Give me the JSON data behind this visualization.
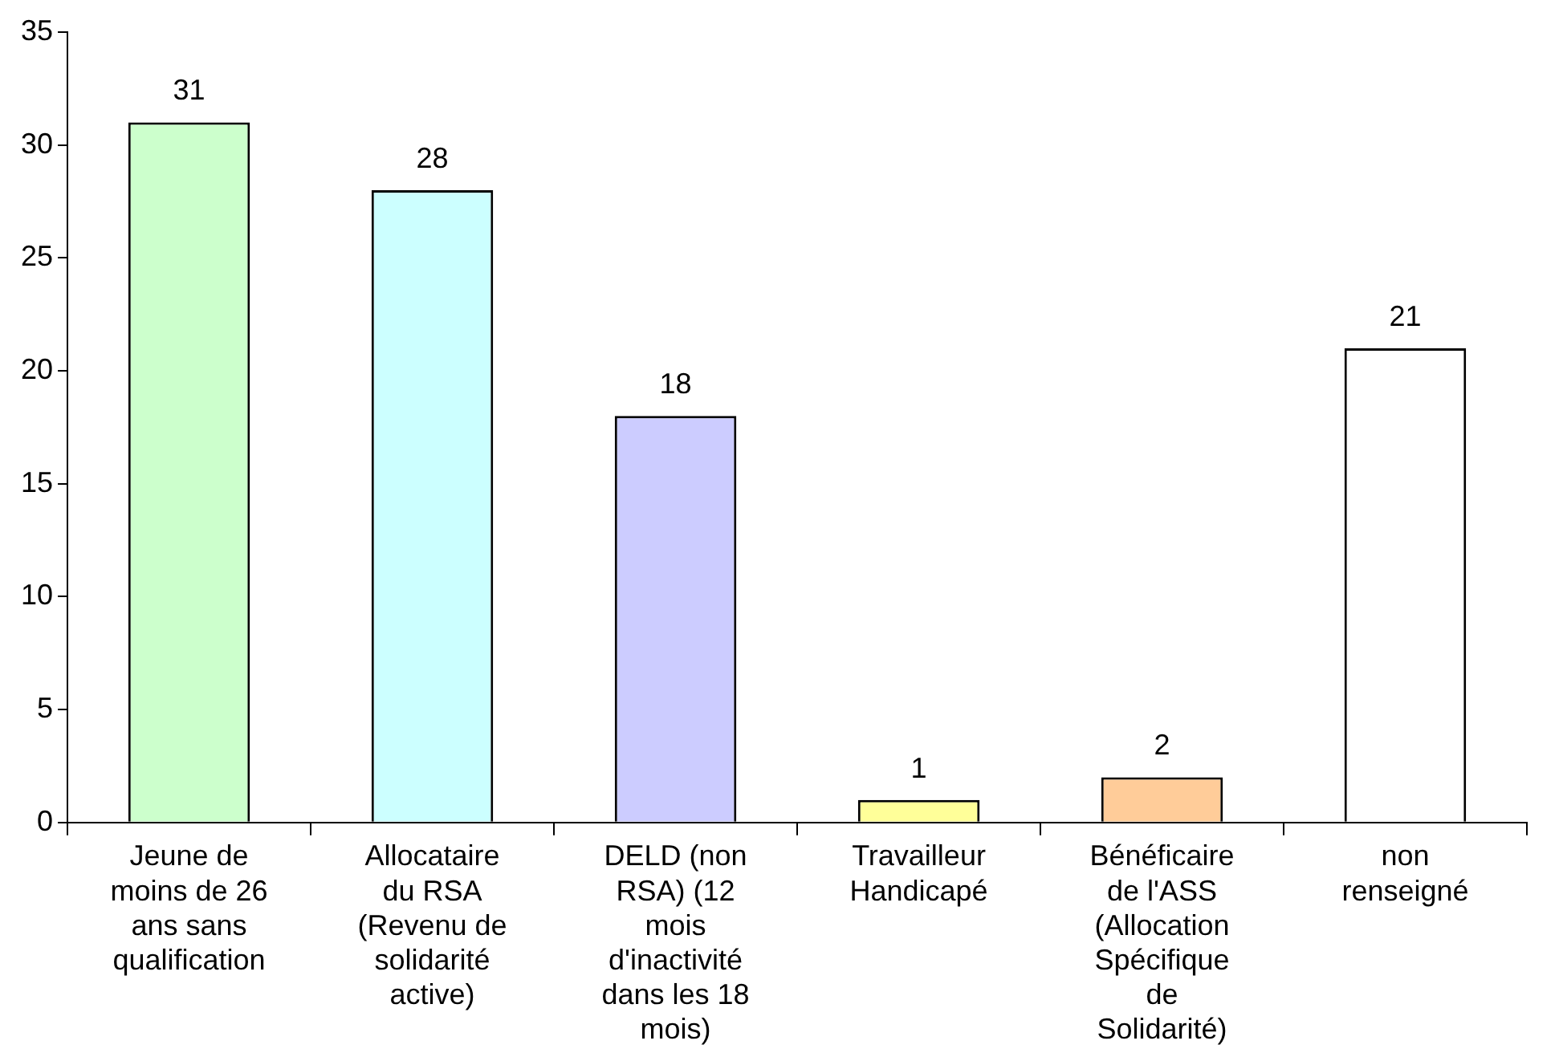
{
  "chart_data": {
    "type": "bar",
    "categories": [
      "Jeune de moins de 26 ans sans qualification",
      "Allocataire du RSA (Revenu de solidarité active)",
      "DELD (non RSA) (12 mois d'inactivité dans les 18 mois)",
      "Travailleur Handicapé",
      "Bénéficaire de l'ASS (Allocation Spécifique de Solidarité)",
      "non renseigné"
    ],
    "values": [
      31,
      28,
      18,
      1,
      2,
      21
    ],
    "colors": [
      "#ccffcc",
      "#ccffff",
      "#ccccff",
      "#ffff99",
      "#ffcc99",
      "#ffffff"
    ],
    "ylim": [
      0,
      35
    ],
    "yticks": [
      0,
      5,
      10,
      15,
      20,
      25,
      30,
      35
    ],
    "data_labels": true,
    "grid": false,
    "legend": false
  }
}
